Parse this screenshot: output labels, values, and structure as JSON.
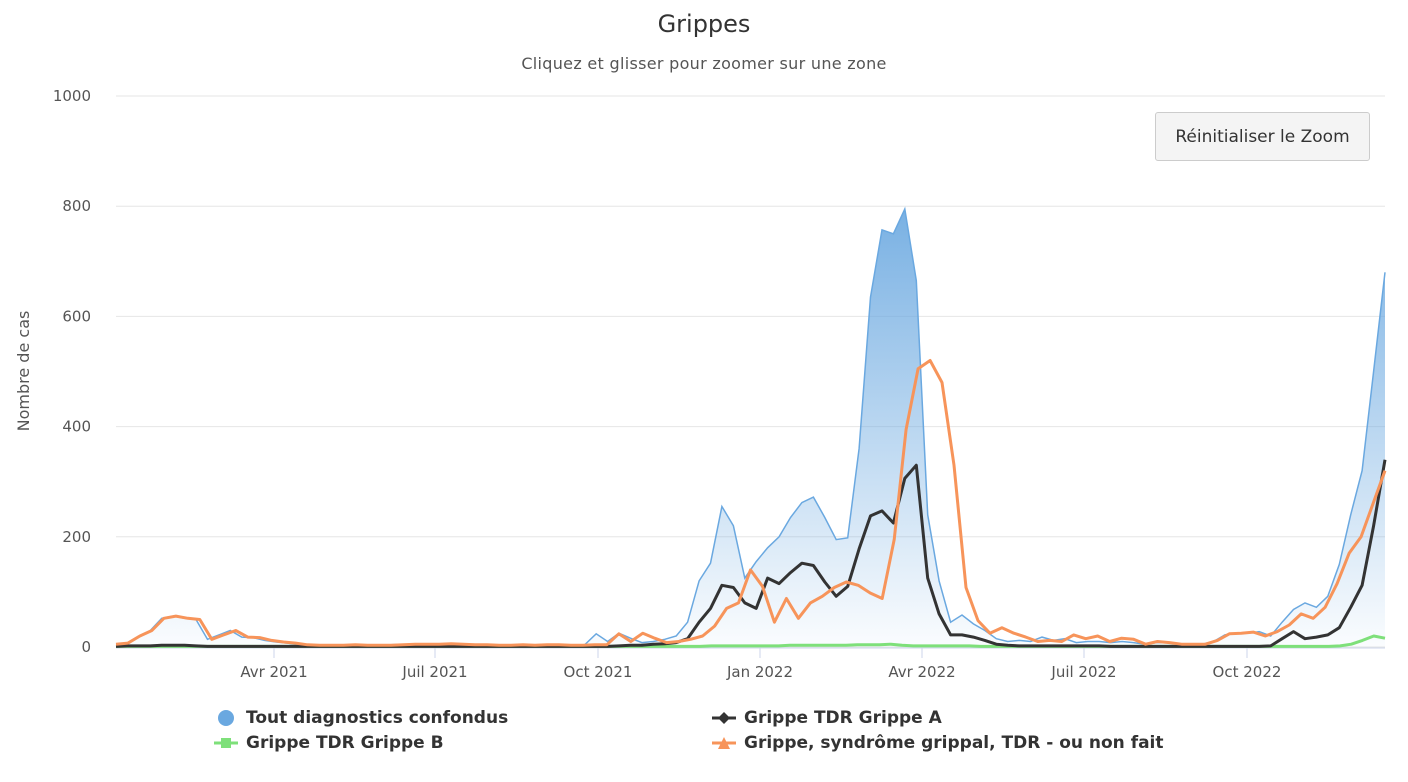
{
  "title": "Grippes",
  "subtitle": "Cliquez et glisser pour zoomer sur une zone",
  "reset_zoom_label": "Réinitialiser le Zoom",
  "legend": [
    {
      "label": "Tout diagnostics confondus",
      "color": "#6aa8e0",
      "symbol": "circle"
    },
    {
      "label": "Grippe TDR Grippe A",
      "color": "#333333",
      "symbol": "diamond"
    },
    {
      "label": "Grippe TDR Grippe B",
      "color": "#7ee07a",
      "symbol": "square"
    },
    {
      "label": "Grippe, syndrôme grippal, TDR - ou non fait",
      "color": "#f7945a",
      "symbol": "triangle"
    }
  ],
  "chart_data": {
    "type": "line",
    "title": "Grippes",
    "subtitle": "Cliquez et glisser pour zoomer sur une zone",
    "xlabel": "",
    "ylabel": "Nombre de cas",
    "ylim": [
      0,
      1000
    ],
    "yticks": [
      0,
      200,
      400,
      600,
      800,
      1000
    ],
    "xticks": [
      "Avr 2021",
      "Juil 2021",
      "Oct 2021",
      "Jan 2022",
      "Avr 2022",
      "Juil 2022",
      "Oct 2022"
    ],
    "grid": true,
    "legend_position": "bottom",
    "x_start": "2021-01-04",
    "x_interval": "weekly",
    "series": [
      {
        "name": "Tout diagnostics confondus",
        "type": "area",
        "color": "#6aa8e0",
        "values": [
          5,
          7,
          20,
          30,
          52,
          56,
          52,
          50,
          14,
          22,
          30,
          18,
          17,
          12,
          9,
          7,
          4,
          3,
          3,
          3,
          4,
          3,
          3,
          3,
          4,
          5,
          5,
          5,
          6,
          5,
          4,
          4,
          3,
          3,
          4,
          3,
          4,
          4,
          3,
          3,
          4,
          4,
          24,
          10,
          25,
          16,
          8,
          10,
          14,
          20,
          45,
          120,
          152,
          255,
          220,
          125,
          155,
          180,
          200,
          235,
          262,
          272,
          235,
          195,
          198,
          360,
          635,
          757,
          750,
          795,
          665,
          240,
          120,
          45,
          58,
          42,
          30,
          15,
          10,
          12,
          10,
          18,
          12,
          15,
          8,
          10,
          10,
          8,
          10,
          8,
          5,
          8,
          8,
          5,
          5,
          5,
          10,
          22,
          25,
          25,
          28,
          20,
          45,
          68,
          80,
          72,
          92,
          150,
          240,
          320,
          500,
          680
        ]
      },
      {
        "name": "Grippe TDR Grippe A",
        "type": "line",
        "color": "#333333",
        "values": [
          1,
          2,
          2,
          2,
          3,
          3,
          3,
          2,
          1,
          1,
          1,
          1,
          1,
          1,
          1,
          1,
          1,
          1,
          1,
          1,
          1,
          1,
          1,
          1,
          1,
          1,
          1,
          1,
          1,
          1,
          1,
          1,
          1,
          1,
          1,
          1,
          1,
          1,
          1,
          1,
          1,
          1,
          1,
          1,
          2,
          3,
          3,
          5,
          6,
          8,
          15,
          45,
          70,
          112,
          108,
          80,
          70,
          125,
          115,
          135,
          152,
          148,
          118,
          92,
          110,
          178,
          238,
          247,
          225,
          306,
          330,
          125,
          60,
          22,
          22,
          18,
          12,
          5,
          3,
          2,
          2,
          2,
          2,
          2,
          2,
          2,
          2,
          1,
          1,
          1,
          1,
          1,
          1,
          1,
          1,
          1,
          1,
          1,
          1,
          1,
          1,
          2,
          15,
          28,
          15,
          18,
          22,
          35,
          72,
          112,
          220,
          340
        ]
      },
      {
        "name": "Grippe TDR Grippe B",
        "type": "line",
        "color": "#7ee07a",
        "values": [
          1,
          1,
          1,
          1,
          1,
          1,
          1,
          1,
          1,
          1,
          1,
          1,
          1,
          1,
          1,
          1,
          1,
          1,
          1,
          1,
          1,
          1,
          1,
          1,
          1,
          1,
          1,
          1,
          1,
          1,
          1,
          1,
          1,
          1,
          1,
          1,
          1,
          1,
          1,
          1,
          1,
          1,
          1,
          1,
          1,
          1,
          1,
          1,
          1,
          1,
          1,
          1,
          1,
          2,
          2,
          2,
          2,
          2,
          2,
          2,
          3,
          3,
          3,
          3,
          3,
          3,
          4,
          4,
          4,
          5,
          3,
          2,
          2,
          2,
          2,
          2,
          2,
          1,
          1,
          1,
          1,
          1,
          1,
          1,
          1,
          1,
          1,
          1,
          1,
          1,
          1,
          1,
          1,
          1,
          1,
          1,
          1,
          1,
          1,
          1,
          1,
          1,
          1,
          1,
          1,
          1,
          1,
          1,
          1,
          2,
          5,
          12,
          20,
          16
        ]
      },
      {
        "name": "Grippe, syndrôme grippal, TDR - ou non fait",
        "type": "line",
        "color": "#f7945a",
        "values": [
          5,
          7,
          20,
          30,
          52,
          56,
          52,
          50,
          14,
          22,
          30,
          18,
          17,
          12,
          9,
          7,
          4,
          3,
          3,
          3,
          4,
          3,
          3,
          3,
          4,
          5,
          5,
          5,
          6,
          5,
          4,
          4,
          3,
          3,
          4,
          3,
          4,
          4,
          3,
          3,
          4,
          4,
          24,
          10,
          25,
          16,
          8,
          10,
          14,
          20,
          38,
          70,
          80,
          140,
          110,
          45,
          88,
          52,
          80,
          92,
          108,
          118,
          112,
          98,
          88,
          195,
          395,
          505,
          520,
          480,
          330,
          108,
          48,
          25,
          35,
          25,
          18,
          10,
          12,
          10,
          22,
          15,
          20,
          10,
          16,
          14,
          5,
          10,
          8,
          5,
          5,
          5,
          12,
          24,
          25,
          27,
          20,
          28,
          40,
          60,
          52,
          72,
          115,
          170,
          200,
          260,
          320
        ]
      }
    ]
  }
}
